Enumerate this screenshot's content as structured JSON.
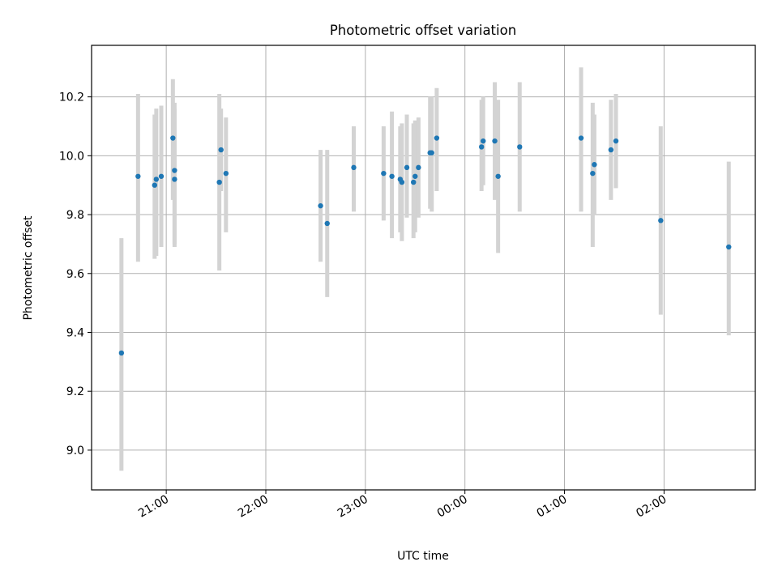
{
  "chart_data": {
    "type": "scatter",
    "title": "Photometric offset variation",
    "xlabel": "UTC time",
    "ylabel": "Photometric offset",
    "x_axis": {
      "type": "time",
      "start": "20:15",
      "end": "02:55 +1d",
      "ticks": [
        "21:00",
        "22:00",
        "23:00",
        "00:00",
        "01:00",
        "02:00"
      ]
    },
    "ylim": [
      8.865,
      10.375
    ],
    "yticks": [
      "9.0",
      "9.2",
      "9.4",
      "9.6",
      "9.8",
      "10.0",
      "10.2"
    ],
    "grid": true,
    "colors": {
      "points": "#1f77b4",
      "error_bars": "#d3d3d3",
      "grid": "#b0b0b0"
    },
    "points": [
      {
        "t": "20:33",
        "y": 9.33,
        "lo": 8.93,
        "hi": 9.72
      },
      {
        "t": "20:43",
        "y": 9.93,
        "lo": 9.64,
        "hi": 10.21
      },
      {
        "t": "20:53",
        "y": 9.9,
        "lo": 9.65,
        "hi": 10.14
      },
      {
        "t": "20:54",
        "y": 9.92,
        "lo": 9.66,
        "hi": 10.16
      },
      {
        "t": "20:57",
        "y": 9.93,
        "lo": 9.69,
        "hi": 10.17
      },
      {
        "t": "21:04",
        "y": 10.06,
        "lo": 9.85,
        "hi": 10.26
      },
      {
        "t": "21:05",
        "y": 9.95,
        "lo": 9.7,
        "hi": 10.18
      },
      {
        "t": "21:05",
        "y": 9.92,
        "lo": 9.69,
        "hi": 10.16
      },
      {
        "t": "21:32",
        "y": 9.91,
        "lo": 9.61,
        "hi": 10.21
      },
      {
        "t": "21:33",
        "y": 10.02,
        "lo": 9.88,
        "hi": 10.16
      },
      {
        "t": "21:36",
        "y": 9.94,
        "lo": 9.74,
        "hi": 10.13
      },
      {
        "t": "22:33",
        "y": 9.83,
        "lo": 9.64,
        "hi": 10.02
      },
      {
        "t": "22:37",
        "y": 9.77,
        "lo": 9.52,
        "hi": 10.02
      },
      {
        "t": "22:53",
        "y": 9.96,
        "lo": 9.81,
        "hi": 10.1
      },
      {
        "t": "23:11",
        "y": 9.94,
        "lo": 9.78,
        "hi": 10.1
      },
      {
        "t": "23:16",
        "y": 9.93,
        "lo": 9.72,
        "hi": 10.15
      },
      {
        "t": "23:21",
        "y": 9.92,
        "lo": 9.74,
        "hi": 10.1
      },
      {
        "t": "23:22",
        "y": 9.91,
        "lo": 9.71,
        "hi": 10.11
      },
      {
        "t": "23:25",
        "y": 9.96,
        "lo": 9.79,
        "hi": 10.14
      },
      {
        "t": "23:29",
        "y": 9.91,
        "lo": 9.72,
        "hi": 10.11
      },
      {
        "t": "23:30",
        "y": 9.93,
        "lo": 9.74,
        "hi": 10.12
      },
      {
        "t": "23:32",
        "y": 9.96,
        "lo": 9.79,
        "hi": 10.13
      },
      {
        "t": "23:39",
        "y": 10.01,
        "lo": 9.82,
        "hi": 10.2
      },
      {
        "t": "23:40",
        "y": 10.01,
        "lo": 9.81,
        "hi": 10.2
      },
      {
        "t": "23:43",
        "y": 10.06,
        "lo": 9.88,
        "hi": 10.23
      },
      {
        "t": "00:10",
        "y": 10.03,
        "lo": 9.88,
        "hi": 10.19
      },
      {
        "t": "00:11",
        "y": 10.05,
        "lo": 9.9,
        "hi": 10.2
      },
      {
        "t": "00:18",
        "y": 10.05,
        "lo": 9.85,
        "hi": 10.25
      },
      {
        "t": "00:20",
        "y": 9.93,
        "lo": 9.67,
        "hi": 10.19
      },
      {
        "t": "00:33",
        "y": 10.03,
        "lo": 9.81,
        "hi": 10.25
      },
      {
        "t": "01:10",
        "y": 10.06,
        "lo": 9.81,
        "hi": 10.3
      },
      {
        "t": "01:17",
        "y": 9.94,
        "lo": 9.69,
        "hi": 10.18
      },
      {
        "t": "01:18",
        "y": 9.97,
        "lo": 9.8,
        "hi": 10.14
      },
      {
        "t": "01:28",
        "y": 10.02,
        "lo": 9.85,
        "hi": 10.19
      },
      {
        "t": "01:31",
        "y": 10.05,
        "lo": 9.89,
        "hi": 10.21
      },
      {
        "t": "01:58",
        "y": 9.78,
        "lo": 9.46,
        "hi": 10.1
      },
      {
        "t": "02:39",
        "y": 9.69,
        "lo": 9.39,
        "hi": 9.98
      }
    ]
  }
}
